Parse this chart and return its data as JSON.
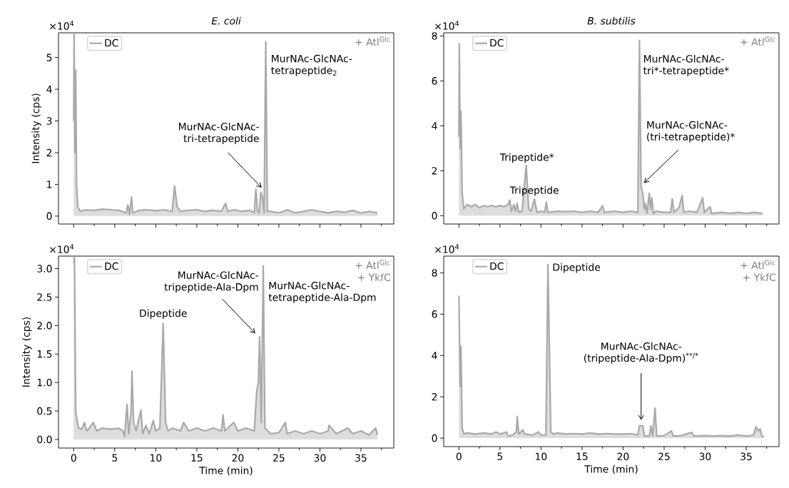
{
  "chart_data": [
    {
      "type": "area",
      "title": "E. coli",
      "ylabel": "Intensity (cps)",
      "legend": "top left",
      "tick_labels": "y",
      "xlim": [
        -1.85,
        39.0
      ],
      "ylim": [
        -0.25,
        5.78
      ],
      "xticks": [
        0,
        {
          "value": 2.5,
          "label": null
        },
        5,
        {
          "value": 7.5,
          "label": null
        },
        10,
        {
          "value": 12.5,
          "label": null
        },
        15,
        {
          "value": 17.5,
          "label": null
        },
        20,
        {
          "value": 22.5,
          "label": null
        },
        25,
        {
          "value": 27.5,
          "label": null
        },
        30,
        {
          "value": 32.5,
          "label": null
        },
        35,
        {
          "value": 37.5,
          "label": null
        }
      ],
      "yticks": [
        0,
        1,
        2,
        3,
        4,
        5
      ],
      "x": [
        0,
        0.05,
        0.15,
        0.25,
        0.35,
        0.5,
        0.8,
        1.5,
        2.5,
        3.5,
        4.5,
        5.5,
        6.4,
        6.6,
        6.8,
        7.05,
        7.2,
        8,
        9,
        10,
        11,
        12,
        12.3,
        12.6,
        13,
        14,
        15,
        16,
        17,
        18,
        18.5,
        18.8,
        19.5,
        20.5,
        21.5,
        22,
        22.2,
        22.4,
        22.6,
        22.8,
        23.0,
        23.2,
        23.4,
        23.6,
        24,
        25,
        26,
        27,
        28,
        29,
        30,
        31,
        32,
        33,
        34,
        35,
        36,
        37
      ],
      "series": [
        {
          "name": "DC",
          "color": "#a9a9a9",
          "values": [
            3.0,
            5.77,
            2.0,
            4.6,
            1.0,
            0.3,
            0.15,
            0.2,
            0.18,
            0.22,
            0.2,
            0.18,
            0.1,
            0.35,
            0.05,
            0.6,
            0.1,
            0.18,
            0.2,
            0.17,
            0.2,
            0.15,
            0.95,
            0.3,
            0.15,
            0.18,
            0.2,
            0.15,
            0.18,
            0.15,
            0.4,
            0.15,
            0.2,
            0.15,
            0.18,
            0.1,
            0.85,
            0.15,
            0.1,
            0.75,
            0.6,
            0.1,
            5.5,
            0.15,
            0.15,
            0.1,
            0.2,
            0.1,
            0.15,
            0.2,
            0.15,
            0.1,
            0.15,
            0.12,
            0.18,
            0.1,
            0.15,
            0.1
          ]
        }
      ],
      "annotations": [
        "×10$^{4}$",
        "+ Atl$^{Glc}$",
        {
          "text": "MurNAc-GlcNAc-tri-tetrapeptide",
          "x": 22.9,
          "y": 0.85
        },
        {
          "text": "MurNAc-GlcNAc-tetrapeptide$_{2}$",
          "x": 23.4,
          "y": 5.5
        }
      ]
    },
    {
      "type": "area",
      "title": "B. subtilis",
      "legend": "top left",
      "tick_labels": "y",
      "xlim": [
        -1.85,
        39.0
      ],
      "ylim": [
        -0.37,
        8.14
      ],
      "xticks": [
        0,
        {
          "value": 2.5,
          "label": null
        },
        5,
        {
          "value": 7.5,
          "label": null
        },
        10,
        {
          "value": 12.5,
          "label": null
        },
        15,
        {
          "value": 17.5,
          "label": null
        },
        20,
        {
          "value": 22.5,
          "label": null
        },
        25,
        {
          "value": 27.5,
          "label": null
        },
        30,
        {
          "value": 32.5,
          "label": null
        },
        35,
        {
          "value": 37.5,
          "label": null
        }
      ],
      "yticks": [
        0,
        2,
        4,
        6,
        8
      ],
      "x": [
        0,
        0.05,
        0.15,
        0.25,
        0.4,
        0.6,
        1,
        1.5,
        2,
        2.5,
        3,
        3.5,
        4,
        4.5,
        5,
        5.5,
        6,
        6.2,
        6.4,
        6.7,
        6.9,
        7.1,
        7.3,
        7.7,
        8.2,
        8.5,
        8.8,
        9.2,
        9.5,
        10,
        10.45,
        10.65,
        10.85,
        12,
        13,
        14,
        15,
        16,
        17,
        17.5,
        17.7,
        19,
        20,
        21,
        21.8,
        22,
        22.2,
        22.4,
        22.6,
        22.7,
        22.9,
        23.2,
        23.35,
        23.5,
        23.7,
        24,
        25,
        25.8,
        26,
        26.2,
        26.8,
        27.2,
        27.4,
        28,
        29,
        29.7,
        29.9,
        30.6,
        30.8,
        32,
        33,
        34,
        35,
        36,
        37
      ],
      "series": [
        {
          "name": "DC",
          "color": "#a9a9a9",
          "values": [
            3.5,
            7.65,
            3.0,
            4.65,
            1.0,
            0.3,
            0.5,
            0.4,
            0.5,
            0.35,
            0.45,
            0.4,
            0.45,
            0.4,
            0.45,
            0.4,
            0.5,
            0.7,
            0.2,
            0.5,
            0.2,
            0.55,
            0.15,
            0.2,
            2.25,
            0.3,
            0.2,
            0.75,
            0.15,
            0.2,
            0.15,
            0.6,
            0.15,
            0.2,
            0.18,
            0.2,
            0.15,
            0.2,
            0.15,
            0.45,
            0.15,
            0.2,
            0.15,
            0.2,
            0.15,
            7.8,
            1.3,
            1.0,
            0.3,
            0.55,
            0.1,
            1.0,
            0.3,
            0.8,
            0.1,
            0.2,
            0.15,
            0.15,
            0.75,
            0.15,
            0.35,
            0.9,
            0.15,
            0.2,
            0.15,
            0.8,
            0.15,
            0.4,
            0.1,
            0.15,
            0.1,
            0.15,
            0.1,
            0.15,
            0.1
          ]
        }
      ],
      "annotations": [
        "×10$^{4}$",
        "+ Atl$^{Glc}$",
        {
          "text": "Tripeptide*",
          "x": 8.2,
          "y": 2.25
        },
        {
          "text": "Tripeptide",
          "x": 9.2,
          "y": 0.75
        },
        {
          "text": "MurNAc-GlcNAc-tri*-tetrapeptide*",
          "x": 22,
          "y": 7.8
        },
        {
          "text": "MurNAc-GlcNAc-(tri-tetrapeptide)*",
          "x": 22.2,
          "y": 1.3
        }
      ]
    },
    {
      "type": "area",
      "xlabel": "Time (min)",
      "ylabel": "Intensity (cps)",
      "legend": "top left",
      "xlim": [
        -1.85,
        39.0
      ],
      "ylim": [
        -0.15,
        3.22
      ],
      "xticks": [
        0,
        {
          "value": 2.5,
          "label": null
        },
        5,
        {
          "value": 7.5,
          "label": null
        },
        10,
        {
          "value": 12.5,
          "label": null
        },
        15,
        {
          "value": 17.5,
          "label": null
        },
        20,
        {
          "value": 22.5,
          "label": null
        },
        25,
        {
          "value": 27.5,
          "label": null
        },
        30,
        {
          "value": 32.5,
          "label": null
        },
        35,
        {
          "value": 37.5,
          "label": null
        }
      ],
      "yticks": [
        {
          "value": 0,
          "label": "0.0"
        },
        {
          "value": 0.5,
          "label": "0.5"
        },
        {
          "value": 1,
          "label": "1.0"
        },
        {
          "value": 1.5,
          "label": "1.5"
        },
        {
          "value": 2,
          "label": "2.0"
        },
        {
          "value": 2.5,
          "label": "2.5"
        },
        {
          "value": 3,
          "label": "3.0"
        }
      ],
      "x": [
        0,
        0.1,
        0.25,
        0.4,
        0.6,
        1,
        1.3,
        1.6,
        2,
        2.4,
        2.8,
        3.5,
        4.5,
        5.5,
        6,
        6.2,
        6.5,
        6.7,
        7,
        7.1,
        7.3,
        7.6,
        8.2,
        8.4,
        8.8,
        9.2,
        9.7,
        10,
        10.5,
        10.9,
        11.2,
        11.5,
        12,
        13,
        13.4,
        14,
        15,
        16,
        17,
        18,
        18.2,
        18.4,
        19.5,
        20,
        21,
        22,
        22.3,
        22.5,
        22.65,
        22.85,
        23.1,
        23.3,
        24,
        25,
        25.8,
        26,
        27,
        28,
        29,
        30,
        31,
        31.1,
        32,
        33.4,
        34,
        35,
        36,
        36.8,
        37
      ],
      "series": [
        {
          "name": "DC",
          "color": "#a9a9a9",
          "values": [
            3.1,
            3.2,
            0.5,
            0.35,
            0.2,
            0.18,
            0.3,
            0.15,
            0.22,
            0.3,
            0.15,
            0.2,
            0.18,
            0.2,
            0.15,
            0.05,
            0.62,
            0.1,
            0.5,
            1.2,
            0.3,
            0.15,
            0.52,
            0.1,
            0.25,
            0.1,
            0.33,
            0.15,
            0.2,
            2.04,
            0.3,
            0.15,
            0.2,
            0.15,
            0.3,
            0.15,
            0.2,
            0.15,
            0.2,
            0.15,
            0.43,
            0.15,
            0.3,
            0.15,
            0.2,
            0.15,
            0.85,
            1.0,
            1.8,
            0.3,
            3.05,
            0.2,
            0.1,
            0.12,
            0.3,
            0.1,
            0.15,
            0.1,
            0.15,
            0.1,
            0.15,
            0.25,
            0.1,
            0.2,
            0.1,
            0.15,
            0.08,
            0.2,
            0.08
          ]
        }
      ],
      "annotations": [
        "×10$^{4}$",
        "+ Atl$^{Glc}$",
        "+ YkfC",
        {
          "text": "Dipeptide",
          "x": 10.9,
          "y": 2.04
        },
        {
          "text": "MurNAc-GlcNAc-tripeptide-Ala-Dpm",
          "x": 22.3,
          "y": 1.85
        },
        {
          "text": "MurNAc-GlcNAc-tetrapeptide-Ala-Dpm",
          "x": 23.1,
          "y": 3.05
        }
      ]
    },
    {
      "type": "area",
      "xlabel": "Time (min)",
      "legend": "top left",
      "xlim": [
        -1.85,
        39.0
      ],
      "ylim": [
        -0.41,
        8.81
      ],
      "xticks": [
        0,
        {
          "value": 2.5,
          "label": null
        },
        5,
        {
          "value": 7.5,
          "label": null
        },
        10,
        {
          "value": 12.5,
          "label": null
        },
        15,
        {
          "value": 17.5,
          "label": null
        },
        20,
        {
          "value": 22.5,
          "label": null
        },
        25,
        {
          "value": 27.5,
          "label": null
        },
        30,
        {
          "value": 32.5,
          "label": null
        },
        35,
        {
          "value": 37.5,
          "label": null
        }
      ],
      "yticks": [
        0,
        2,
        4,
        6,
        8
      ],
      "x": [
        0,
        0.15,
        0.25,
        0.4,
        0.6,
        1,
        2,
        3,
        4,
        4.5,
        5,
        5.5,
        5.8,
        6,
        6.5,
        7,
        7.1,
        7.3,
        7.8,
        8,
        9,
        9.7,
        10,
        10.6,
        10.85,
        11.2,
        11.5,
        12,
        13,
        14,
        15,
        16,
        17,
        18,
        19,
        20,
        21,
        21.8,
        22,
        22.4,
        22.6,
        23.2,
        23.4,
        23.6,
        23.9,
        24.1,
        25,
        25.9,
        26.1,
        27,
        28.4,
        28.6,
        30,
        31,
        32,
        33,
        34,
        35,
        35.9,
        36.2,
        36.5,
        36.7,
        36.9,
        37.2
      ],
      "series": [
        {
          "name": "DC",
          "color": "#a9a9a9",
          "values": [
            6.9,
            2.5,
            4.45,
            0.5,
            0.2,
            0.25,
            0.2,
            0.25,
            0.2,
            0.3,
            0.2,
            0.25,
            0.3,
            0.1,
            0.15,
            0.3,
            1.05,
            0.2,
            0.4,
            0.2,
            0.15,
            0.3,
            0.15,
            0.15,
            8.4,
            0.3,
            0.2,
            0.25,
            0.2,
            0.22,
            0.2,
            0.25,
            0.2,
            0.22,
            0.2,
            0.2,
            0.22,
            0.15,
            0.6,
            0.6,
            0.1,
            0.1,
            0.6,
            0.1,
            1.45,
            0.1,
            0.12,
            0.35,
            0.1,
            0.12,
            0.28,
            0.1,
            0.12,
            0.1,
            0.12,
            0.1,
            0.15,
            0.1,
            0.15,
            0.55,
            0.35,
            0.45,
            0.1,
            0.08
          ]
        }
      ],
      "annotations": [
        "×10$^{4}$",
        "+ Atl$^{Glc}$",
        "+ YkfC",
        {
          "text": "Dipeptide",
          "x": 10.85,
          "y": 8.4
        },
        {
          "text": "MurNAc-GlcNAc-(tripeptide-Ala-Dpm)$^{**/*}$",
          "x": 22.2,
          "y": 0.8
        }
      ]
    }
  ]
}
